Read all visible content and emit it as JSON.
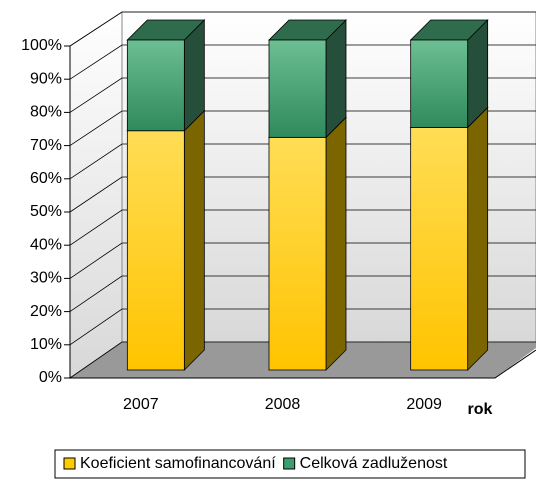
{
  "chart_data": {
    "type": "bar3d_stacked",
    "categories": [
      "2007",
      "2008",
      "2009"
    ],
    "x_label": "rok",
    "series": [
      {
        "name": "Koeficient samofinancování",
        "color": "#ffcc00",
        "values": [
          72.5,
          70.5,
          73.5
        ]
      },
      {
        "name": "Celková zadluženost",
        "color": "#3f9d6e",
        "values": [
          27.5,
          29.5,
          26.5
        ]
      }
    ],
    "ylim": [
      0,
      100
    ],
    "yticks": [
      {
        "value": 0,
        "label": "0%"
      },
      {
        "value": 10,
        "label": "10%"
      },
      {
        "value": 20,
        "label": "20%"
      },
      {
        "value": 30,
        "label": "30%"
      },
      {
        "value": 40,
        "label": "40%"
      },
      {
        "value": 50,
        "label": "50%"
      },
      {
        "value": 60,
        "label": "60%"
      },
      {
        "value": 70,
        "label": "70%"
      },
      {
        "value": 80,
        "label": "80%"
      },
      {
        "value": 90,
        "label": "90%"
      },
      {
        "value": 100,
        "label": "100%"
      }
    ],
    "grid": true,
    "legend": "bottom"
  }
}
